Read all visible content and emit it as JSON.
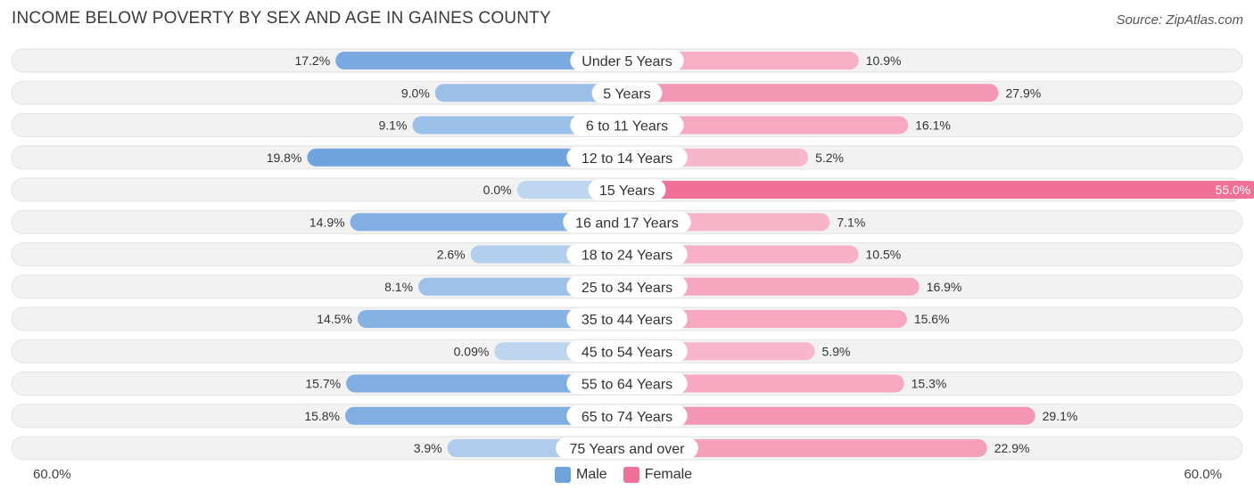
{
  "header": {
    "title": "Income Below Poverty by Sex and Age in Gaines County",
    "source": "Source: ZipAtlas.com"
  },
  "axis": {
    "left_label": "60.0%",
    "right_label": "60.0%"
  },
  "legend": {
    "male_label": "Male",
    "female_label": "Female",
    "male_color": "#6fa3de",
    "female_color": "#f07098"
  },
  "chart_data": {
    "type": "bar",
    "orientation": "horizontal-diverging",
    "title": "Income Below Poverty by Sex and Age in Gaines County",
    "xlim": [
      -60,
      60
    ],
    "categories": [
      "Under 5 Years",
      "5 Years",
      "6 to 11 Years",
      "12 to 14 Years",
      "15 Years",
      "16 and 17 Years",
      "18 to 24 Years",
      "25 to 34 Years",
      "35 to 44 Years",
      "45 to 54 Years",
      "55 to 64 Years",
      "65 to 74 Years",
      "75 Years and over"
    ],
    "series": [
      {
        "name": "Male",
        "values": [
          17.2,
          9.0,
          9.1,
          19.8,
          0.0,
          14.9,
          2.6,
          8.1,
          14.5,
          0.09,
          15.7,
          15.8,
          3.9
        ],
        "labels": [
          "17.2%",
          "9.0%",
          "9.1%",
          "19.8%",
          "0.0%",
          "14.9%",
          "2.6%",
          "8.1%",
          "14.5%",
          "0.09%",
          "15.7%",
          "15.8%",
          "3.9%"
        ]
      },
      {
        "name": "Female",
        "values": [
          10.9,
          27.9,
          16.1,
          5.2,
          55.0,
          7.1,
          10.5,
          16.9,
          15.6,
          5.9,
          15.3,
          29.1,
          22.9
        ],
        "labels": [
          "10.9%",
          "27.9%",
          "16.1%",
          "5.2%",
          "55.0%",
          "7.1%",
          "10.5%",
          "16.9%",
          "15.6%",
          "5.9%",
          "15.3%",
          "29.1%",
          "22.9%"
        ]
      }
    ]
  }
}
